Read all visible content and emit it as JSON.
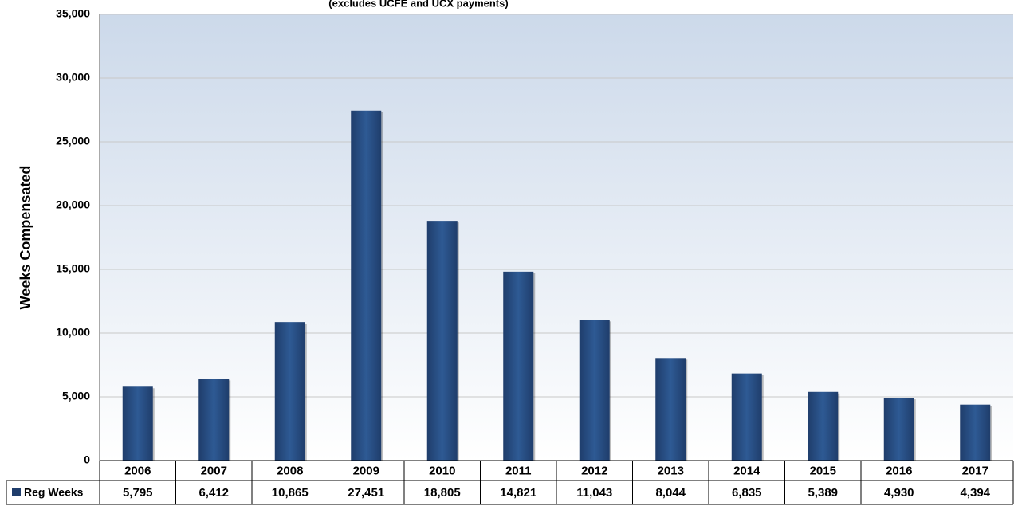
{
  "chart_data": {
    "type": "bar",
    "subtitle": "(excludes UCFE and UCX payments)",
    "ylabel": "Weeks Compensated",
    "ylim": [
      0,
      35000
    ],
    "yticks": [
      0,
      5000,
      10000,
      15000,
      20000,
      25000,
      30000,
      35000
    ],
    "ytick_labels": [
      "0",
      "5,000",
      "10,000",
      "15,000",
      "20,000",
      "25,000",
      "30,000",
      "35,000"
    ],
    "grid": true,
    "legend": "data-table",
    "categories": [
      "2006",
      "2007",
      "2008",
      "2009",
      "2010",
      "2011",
      "2012",
      "2013",
      "2014",
      "2015",
      "2016",
      "2017"
    ],
    "series": [
      {
        "name": "Reg Weeks",
        "values": [
          5795,
          6412,
          10865,
          27451,
          18805,
          14821,
          11043,
          8044,
          6835,
          5389,
          4930,
          4394
        ],
        "value_labels": [
          "5,795",
          "6,412",
          "10,865",
          "27,451",
          "18,805",
          "14,821",
          "11,043",
          "8,044",
          "6,835",
          "5,389",
          "4,930",
          "4,394"
        ],
        "color": "#1f3d6b"
      }
    ],
    "colors": {
      "plot_top": "#ccd9ea",
      "plot_bottom": "#ffffff",
      "bar": "#1f3d6b",
      "bar_highlight": "#2e5a94",
      "gridline": "#c8c8c8"
    }
  }
}
